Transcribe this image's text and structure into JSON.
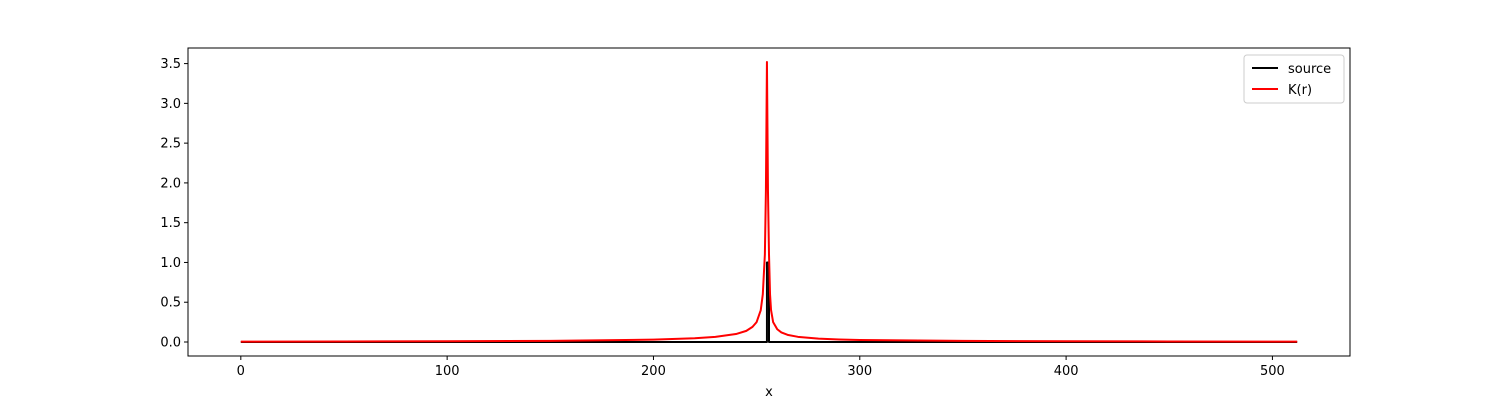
{
  "chart_data": {
    "type": "line",
    "title": "",
    "xlabel": "x",
    "ylabel": "",
    "xlim": [
      -25.6,
      537.6
    ],
    "ylim": [
      -0.176,
      3.696
    ],
    "xticks": [
      0,
      100,
      200,
      300,
      400,
      500
    ],
    "xtick_labels": [
      "0",
      "100",
      "200",
      "300",
      "400",
      "500"
    ],
    "yticks": [
      0.0,
      0.5,
      1.0,
      1.5,
      2.0,
      2.5,
      3.0,
      3.5
    ],
    "ytick_labels": [
      "0.0",
      "0.5",
      "1.0",
      "1.5",
      "2.0",
      "2.5",
      "3.0",
      "3.5"
    ],
    "grid": false,
    "legend_position": "top-right",
    "series": [
      {
        "name": "source",
        "color": "#000000",
        "x": [
          0,
          255,
          255,
          256,
          256,
          512
        ],
        "y": [
          0,
          0,
          1.0,
          1.0,
          0,
          0
        ]
      },
      {
        "name": "K(r)",
        "color": "#ff0000",
        "x": [
          0,
          50,
          100,
          150,
          200,
          220,
          230,
          240,
          245,
          248,
          250,
          252,
          253,
          254,
          254.5,
          255,
          255.5,
          256,
          256.5,
          257,
          258,
          260,
          262,
          265,
          270,
          280,
          290,
          300,
          350,
          400,
          450,
          512
        ],
        "y": [
          0.005,
          0.007,
          0.009,
          0.014,
          0.03,
          0.047,
          0.064,
          0.1,
          0.14,
          0.19,
          0.25,
          0.4,
          0.6,
          1.1,
          1.9,
          3.52,
          1.9,
          1.1,
          0.6,
          0.4,
          0.25,
          0.16,
          0.12,
          0.09,
          0.065,
          0.042,
          0.031,
          0.025,
          0.014,
          0.009,
          0.007,
          0.005
        ]
      }
    ]
  }
}
